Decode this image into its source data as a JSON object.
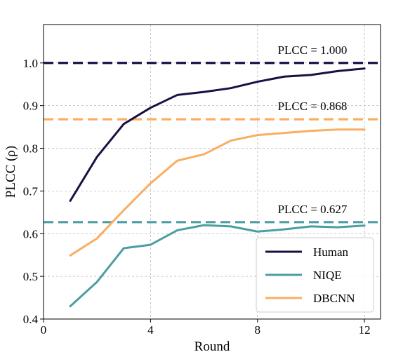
{
  "chart_data": {
    "type": "line",
    "xlabel": "Round",
    "ylabel": "PLCC (ρ)",
    "xlim": [
      0,
      12.6
    ],
    "ylim": [
      0.4,
      1.09
    ],
    "xticks": [
      0,
      4,
      8,
      12
    ],
    "yticks": [
      0.4,
      0.5,
      0.6,
      0.7,
      0.8,
      0.9,
      1.0
    ],
    "xtick_labels": [
      "0",
      "4",
      "8",
      "12"
    ],
    "ytick_labels": [
      "0.4",
      "0.5",
      "0.6",
      "0.7",
      "0.8",
      "0.9",
      "1.0"
    ],
    "grid": true,
    "legend_position": "lower-right",
    "series": [
      {
        "name": "Human",
        "color": "#1b0f45",
        "x": [
          1,
          2,
          3,
          4,
          5,
          6,
          7,
          8,
          9,
          10,
          11,
          12
        ],
        "y": [
          0.677,
          0.78,
          0.857,
          0.895,
          0.925,
          0.932,
          0.941,
          0.956,
          0.968,
          0.972,
          0.981,
          0.987
        ]
      },
      {
        "name": "NIQE",
        "color": "#4b9ea1",
        "x": [
          1,
          2,
          3,
          4,
          5,
          6,
          7,
          8,
          9,
          10,
          11,
          12
        ],
        "y": [
          0.43,
          0.487,
          0.566,
          0.574,
          0.608,
          0.62,
          0.617,
          0.605,
          0.61,
          0.617,
          0.615,
          0.619
        ]
      },
      {
        "name": "DBCNN",
        "color": "#f9ae63",
        "x": [
          1,
          2,
          3,
          4,
          5,
          6,
          7,
          8,
          9,
          10,
          11,
          12
        ],
        "y": [
          0.549,
          0.589,
          0.655,
          0.718,
          0.771,
          0.786,
          0.818,
          0.831,
          0.836,
          0.841,
          0.844,
          0.844
        ]
      }
    ],
    "reference_lines": [
      {
        "series": "Human",
        "y": 1.0,
        "color": "#1b0f45",
        "label": "PLCC = 1.000"
      },
      {
        "series": "DBCNN",
        "y": 0.868,
        "color": "#f9ae63",
        "label": "PLCC = 0.868"
      },
      {
        "series": "NIQE",
        "y": 0.627,
        "color": "#4b9ea1",
        "label": "PLCC = 0.627"
      }
    ]
  }
}
